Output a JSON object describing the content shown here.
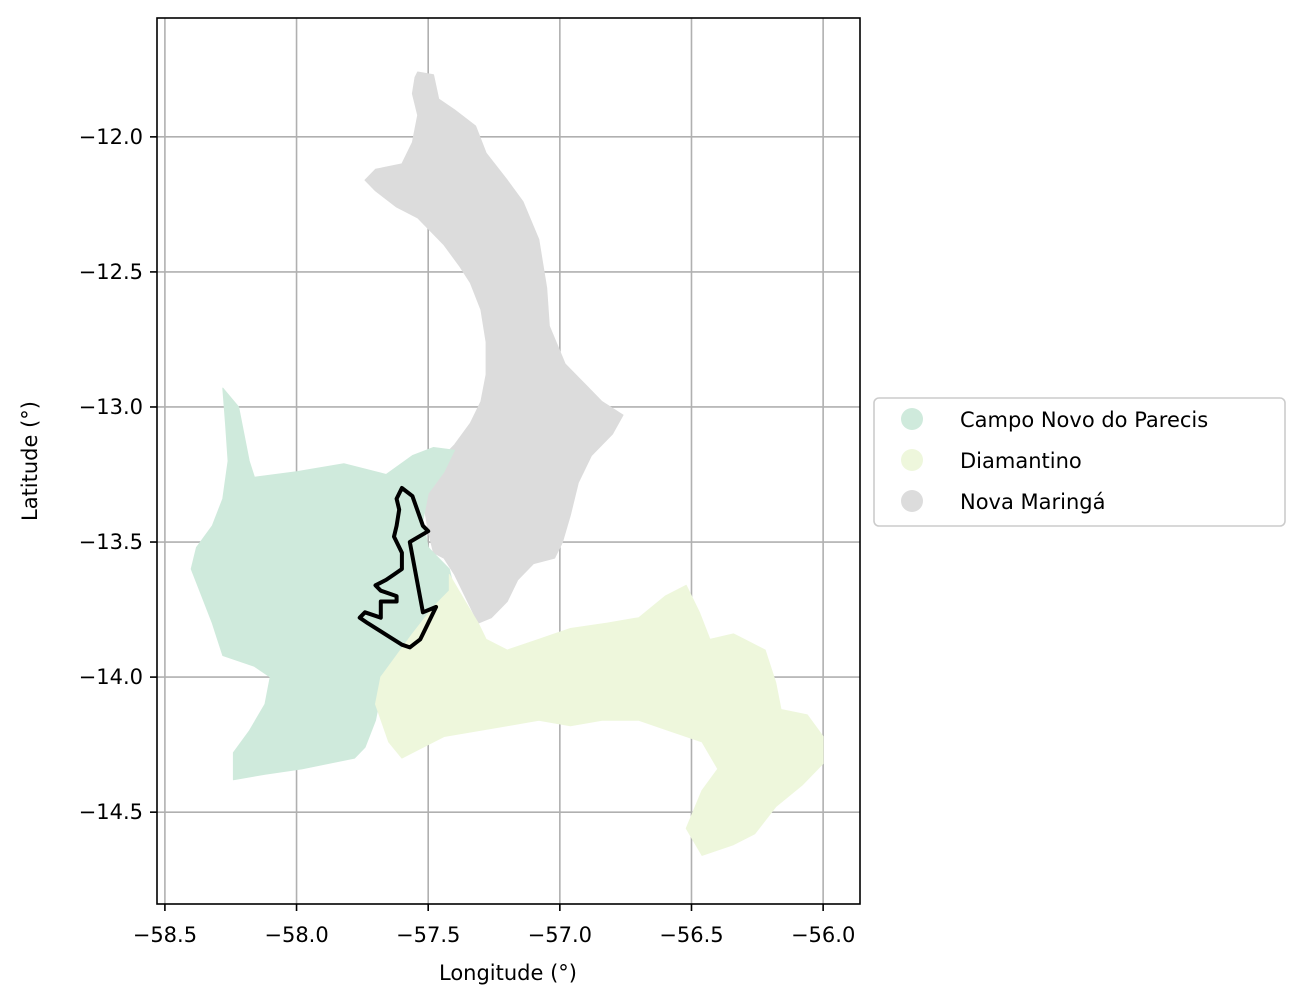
{
  "map": {
    "xlabel": "Longitude (°)",
    "ylabel": "Latitude (°)",
    "x_range": [
      -58.53,
      -55.86
    ],
    "y_range": [
      -14.84,
      -11.56
    ],
    "x_ticks": [
      -58.5,
      -58.0,
      -57.5,
      -57.0,
      -56.5,
      -56.0
    ],
    "x_tick_labels": [
      "−58.5",
      "−58.0",
      "−57.5",
      "−57.0",
      "−56.5",
      "−56.0"
    ],
    "y_ticks": [
      -12.0,
      -12.5,
      -13.0,
      -13.5,
      -14.0,
      -14.5
    ],
    "y_tick_labels": [
      "−12.0",
      "−12.5",
      "−13.0",
      "−13.5",
      "−14.0",
      "−14.5"
    ],
    "grid": true,
    "legend": {
      "placement": "outside right, vertically centered",
      "entries": [
        {
          "label": "Campo Novo do Parecis",
          "color": "#cfeadc"
        },
        {
          "label": "Diamantino",
          "color": "#eef7dc"
        },
        {
          "label": "Nova Maringá",
          "color": "#dcdcdc"
        }
      ]
    },
    "regions": [
      {
        "name": "Nova Maringá",
        "color": "#dcdcdc",
        "outline": [
          [
            -57.54,
            -11.76
          ],
          [
            -57.48,
            -11.77
          ],
          [
            -57.46,
            -11.86
          ],
          [
            -57.4,
            -11.9
          ],
          [
            -57.32,
            -11.96
          ],
          [
            -57.28,
            -12.06
          ],
          [
            -57.2,
            -12.16
          ],
          [
            -57.14,
            -12.24
          ],
          [
            -57.08,
            -12.38
          ],
          [
            -57.05,
            -12.56
          ],
          [
            -57.04,
            -12.7
          ],
          [
            -56.98,
            -12.84
          ],
          [
            -56.9,
            -12.92
          ],
          [
            -56.84,
            -12.98
          ],
          [
            -56.76,
            -13.03
          ],
          [
            -56.8,
            -13.1
          ],
          [
            -56.88,
            -13.18
          ],
          [
            -56.93,
            -13.28
          ],
          [
            -56.96,
            -13.4
          ],
          [
            -56.99,
            -13.5
          ],
          [
            -57.02,
            -13.56
          ],
          [
            -57.1,
            -13.58
          ],
          [
            -57.16,
            -13.64
          ],
          [
            -57.2,
            -13.72
          ],
          [
            -57.26,
            -13.78
          ],
          [
            -57.31,
            -13.8
          ],
          [
            -57.35,
            -13.72
          ],
          [
            -57.4,
            -13.62
          ],
          [
            -57.44,
            -13.56
          ],
          [
            -57.48,
            -13.54
          ],
          [
            -57.5,
            -13.46
          ],
          [
            -57.52,
            -13.34
          ],
          [
            -57.48,
            -13.22
          ],
          [
            -57.4,
            -13.14
          ],
          [
            -57.34,
            -13.06
          ],
          [
            -57.3,
            -12.98
          ],
          [
            -57.28,
            -12.88
          ],
          [
            -57.28,
            -12.76
          ],
          [
            -57.3,
            -12.64
          ],
          [
            -57.34,
            -12.54
          ],
          [
            -57.38,
            -12.48
          ],
          [
            -57.44,
            -12.4
          ],
          [
            -57.54,
            -12.3
          ],
          [
            -57.62,
            -12.26
          ],
          [
            -57.7,
            -12.2
          ],
          [
            -57.74,
            -12.16
          ],
          [
            -57.7,
            -12.12
          ],
          [
            -57.6,
            -12.1
          ],
          [
            -57.56,
            -12.02
          ],
          [
            -57.54,
            -11.92
          ],
          [
            -57.56,
            -11.84
          ],
          [
            -57.55,
            -11.78
          ]
        ]
      },
      {
        "name": "Campo Novo do Parecis",
        "color": "#cfeadc",
        "outline": [
          [
            -58.28,
            -12.93
          ],
          [
            -58.22,
            -13.0
          ],
          [
            -58.2,
            -13.1
          ],
          [
            -58.18,
            -13.2
          ],
          [
            -58.16,
            -13.26
          ],
          [
            -58.0,
            -13.24
          ],
          [
            -57.82,
            -13.21
          ],
          [
            -57.66,
            -13.25
          ],
          [
            -57.56,
            -13.18
          ],
          [
            -57.48,
            -13.15
          ],
          [
            -57.4,
            -13.16
          ],
          [
            -57.44,
            -13.24
          ],
          [
            -57.5,
            -13.32
          ],
          [
            -57.52,
            -13.42
          ],
          [
            -57.5,
            -13.52
          ],
          [
            -57.46,
            -13.56
          ],
          [
            -57.42,
            -13.6
          ],
          [
            -57.4,
            -13.68
          ],
          [
            -57.46,
            -13.74
          ],
          [
            -57.52,
            -13.8
          ],
          [
            -57.56,
            -13.86
          ],
          [
            -57.6,
            -13.92
          ],
          [
            -57.66,
            -13.98
          ],
          [
            -57.68,
            -14.06
          ],
          [
            -57.7,
            -14.16
          ],
          [
            -57.74,
            -14.26
          ],
          [
            -57.78,
            -14.3
          ],
          [
            -57.98,
            -14.34
          ],
          [
            -58.12,
            -14.36
          ],
          [
            -58.24,
            -14.38
          ],
          [
            -58.24,
            -14.28
          ],
          [
            -58.18,
            -14.2
          ],
          [
            -58.12,
            -14.1
          ],
          [
            -58.1,
            -14.0
          ],
          [
            -58.16,
            -13.96
          ],
          [
            -58.28,
            -13.92
          ],
          [
            -58.32,
            -13.8
          ],
          [
            -58.36,
            -13.7
          ],
          [
            -58.4,
            -13.6
          ],
          [
            -58.38,
            -13.52
          ],
          [
            -58.32,
            -13.44
          ],
          [
            -58.28,
            -13.34
          ],
          [
            -58.26,
            -13.2
          ],
          [
            -58.27,
            -13.06
          ]
        ]
      },
      {
        "name": "Diamantino",
        "color": "#eef7dc",
        "outline": [
          [
            -57.42,
            -13.62
          ],
          [
            -57.36,
            -13.72
          ],
          [
            -57.31,
            -13.8
          ],
          [
            -57.28,
            -13.86
          ],
          [
            -57.2,
            -13.9
          ],
          [
            -57.08,
            -13.86
          ],
          [
            -56.96,
            -13.82
          ],
          [
            -56.82,
            -13.8
          ],
          [
            -56.7,
            -13.78
          ],
          [
            -56.6,
            -13.7
          ],
          [
            -56.52,
            -13.66
          ],
          [
            -56.47,
            -13.76
          ],
          [
            -56.43,
            -13.86
          ],
          [
            -56.34,
            -13.84
          ],
          [
            -56.22,
            -13.9
          ],
          [
            -56.18,
            -14.02
          ],
          [
            -56.16,
            -14.12
          ],
          [
            -56.06,
            -14.14
          ],
          [
            -56.0,
            -14.22
          ],
          [
            -56.0,
            -14.32
          ],
          [
            -56.08,
            -14.4
          ],
          [
            -56.18,
            -14.48
          ],
          [
            -56.26,
            -14.58
          ],
          [
            -56.34,
            -14.62
          ],
          [
            -56.46,
            -14.66
          ],
          [
            -56.52,
            -14.56
          ],
          [
            -56.46,
            -14.42
          ],
          [
            -56.4,
            -14.34
          ],
          [
            -56.46,
            -14.24
          ],
          [
            -56.58,
            -14.2
          ],
          [
            -56.7,
            -14.16
          ],
          [
            -56.84,
            -14.16
          ],
          [
            -56.96,
            -14.18
          ],
          [
            -57.08,
            -14.16
          ],
          [
            -57.2,
            -14.18
          ],
          [
            -57.32,
            -14.2
          ],
          [
            -57.44,
            -14.22
          ],
          [
            -57.52,
            -14.26
          ],
          [
            -57.6,
            -14.3
          ],
          [
            -57.65,
            -14.24
          ],
          [
            -57.7,
            -14.1
          ],
          [
            -57.68,
            -14.0
          ],
          [
            -57.62,
            -13.92
          ],
          [
            -57.56,
            -13.84
          ],
          [
            -57.48,
            -13.74
          ],
          [
            -57.42,
            -13.68
          ]
        ]
      }
    ],
    "highlight_boundary": {
      "color": "#000000",
      "outline": [
        [
          -57.6,
          -13.3
        ],
        [
          -57.56,
          -13.33
        ],
        [
          -57.52,
          -13.44
        ],
        [
          -57.5,
          -13.46
        ],
        [
          -57.57,
          -13.5
        ],
        [
          -57.52,
          -13.76
        ],
        [
          -57.47,
          -13.74
        ],
        [
          -57.53,
          -13.86
        ],
        [
          -57.57,
          -13.89
        ],
        [
          -57.6,
          -13.88
        ],
        [
          -57.73,
          -13.8
        ],
        [
          -57.76,
          -13.78
        ],
        [
          -57.74,
          -13.76
        ],
        [
          -57.68,
          -13.78
        ],
        [
          -57.68,
          -13.72
        ],
        [
          -57.62,
          -13.72
        ],
        [
          -57.62,
          -13.7
        ],
        [
          -57.68,
          -13.68
        ],
        [
          -57.7,
          -13.66
        ],
        [
          -57.66,
          -13.64
        ],
        [
          -57.63,
          -13.62
        ],
        [
          -57.6,
          -13.6
        ],
        [
          -57.6,
          -13.54
        ],
        [
          -57.63,
          -13.48
        ],
        [
          -57.62,
          -13.44
        ],
        [
          -57.61,
          -13.38
        ],
        [
          -57.62,
          -13.34
        ]
      ]
    }
  }
}
